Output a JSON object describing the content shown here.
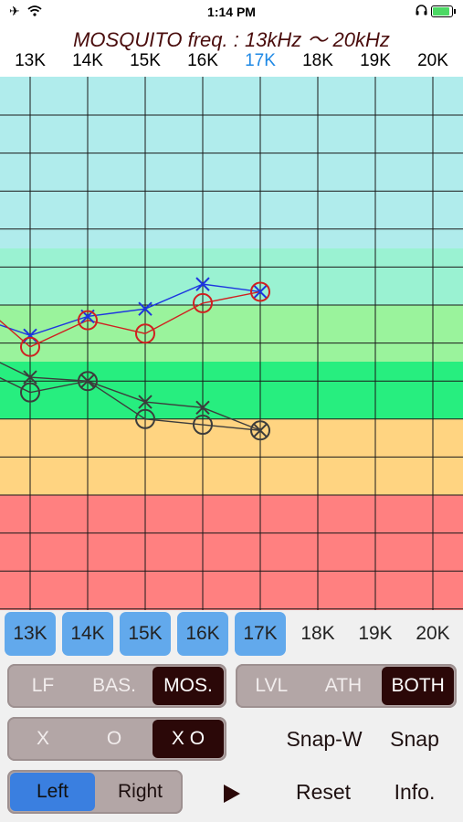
{
  "status": {
    "left": "✈ ︎",
    "time": "1:14 PM",
    "right": "🎧"
  },
  "title": "MOSQUITO freq. : 13kHz 〜 20kHz",
  "freq_header": [
    "13K",
    "14K",
    "15K",
    "16K",
    "17K",
    "18K",
    "19K",
    "20K"
  ],
  "active_freq": "17K",
  "colors": {
    "band_cyan": "#b0ecec",
    "band_aqua": "#9af2d2",
    "band_lightgreen": "#9af39c",
    "band_green": "#27ee7f",
    "band_orange": "#ffd481",
    "band_red": "#ff8080",
    "blue_series": "#1d35e0",
    "red_series": "#d02020",
    "gray_series": "#3c3c3c",
    "accent": "#1e88e5"
  },
  "freq_buttons": [
    {
      "label": "13K",
      "on": true
    },
    {
      "label": "14K",
      "on": true
    },
    {
      "label": "15K",
      "on": true
    },
    {
      "label": "16K",
      "on": true
    },
    {
      "label": "17K",
      "on": true
    },
    {
      "label": "18K",
      "on": false
    },
    {
      "label": "19K",
      "on": false
    },
    {
      "label": "20K",
      "on": false
    }
  ],
  "mode_seg": {
    "options": [
      "LF",
      "BAS.",
      "MOS."
    ],
    "selected": "MOS."
  },
  "level_seg": {
    "options": [
      "LVL",
      "ATH",
      "BOTH"
    ],
    "selected": "BOTH"
  },
  "mark_seg": {
    "options": [
      "X",
      "O",
      "X O"
    ],
    "selected": "X O"
  },
  "ear_seg": {
    "options": [
      "Left",
      "Right"
    ],
    "selected": "Left"
  },
  "buttons": {
    "snap_w": "Snap-W",
    "snap": "Snap",
    "reset": "Reset",
    "info": "Info.",
    "play_icon": "play-icon"
  }
}
